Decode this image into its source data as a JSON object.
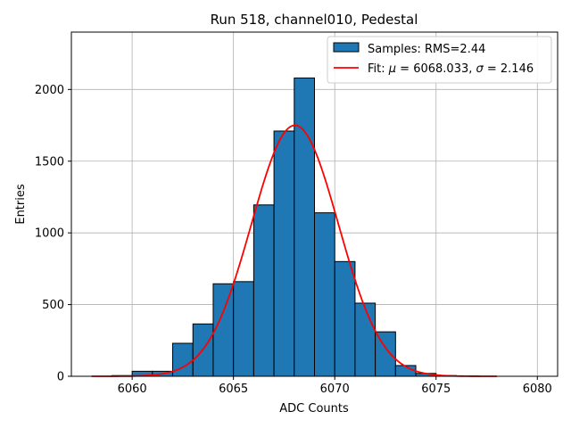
{
  "chart_data": {
    "type": "bar",
    "title": "Run 518, channel010, Pedestal",
    "xlabel": "ADC Counts",
    "ylabel": "Entries",
    "xlim": [
      6057,
      6081
    ],
    "ylim": [
      0,
      2400
    ],
    "xticks": [
      6060,
      6065,
      6070,
      6075,
      6080
    ],
    "yticks": [
      0,
      500,
      1000,
      1500,
      2000
    ],
    "grid": true,
    "legend_position": "top-right",
    "bar_color": "#1f77b4",
    "fit_color": "#ff0000",
    "bins": [
      {
        "start": 6059,
        "end": 6060,
        "count": 5
      },
      {
        "start": 6060,
        "end": 6061,
        "count": 35
      },
      {
        "start": 6061,
        "end": 6062,
        "count": 35
      },
      {
        "start": 6062,
        "end": 6063,
        "count": 230
      },
      {
        "start": 6063,
        "end": 6064,
        "count": 365
      },
      {
        "start": 6064,
        "end": 6065,
        "count": 645
      },
      {
        "start": 6065,
        "end": 6066,
        "count": 660
      },
      {
        "start": 6066,
        "end": 6067,
        "count": 1195
      },
      {
        "start": 6067,
        "end": 6068,
        "count": 1710
      },
      {
        "start": 6068,
        "end": 6069,
        "count": 2080
      },
      {
        "start": 6069,
        "end": 6070,
        "count": 1140
      },
      {
        "start": 6070,
        "end": 6071,
        "count": 800
      },
      {
        "start": 6071,
        "end": 6072,
        "count": 510
      },
      {
        "start": 6072,
        "end": 6073,
        "count": 310
      },
      {
        "start": 6073,
        "end": 6074,
        "count": 75
      },
      {
        "start": 6074,
        "end": 6075,
        "count": 20
      },
      {
        "start": 6075,
        "end": 6076,
        "count": 5
      }
    ],
    "fit": {
      "mu": 6068.033,
      "sigma": 2.146,
      "peak": 1750,
      "x_range": [
        6058,
        6078
      ]
    },
    "legend": [
      {
        "kind": "bar",
        "label": "Samples: RMS=2.44"
      },
      {
        "kind": "line",
        "label_prefix": "Fit: ",
        "mu_symbol": "μ",
        "mu_text": " = 6068.033, ",
        "sigma_symbol": "σ",
        "sigma_text": " = 2.146"
      }
    ]
  }
}
